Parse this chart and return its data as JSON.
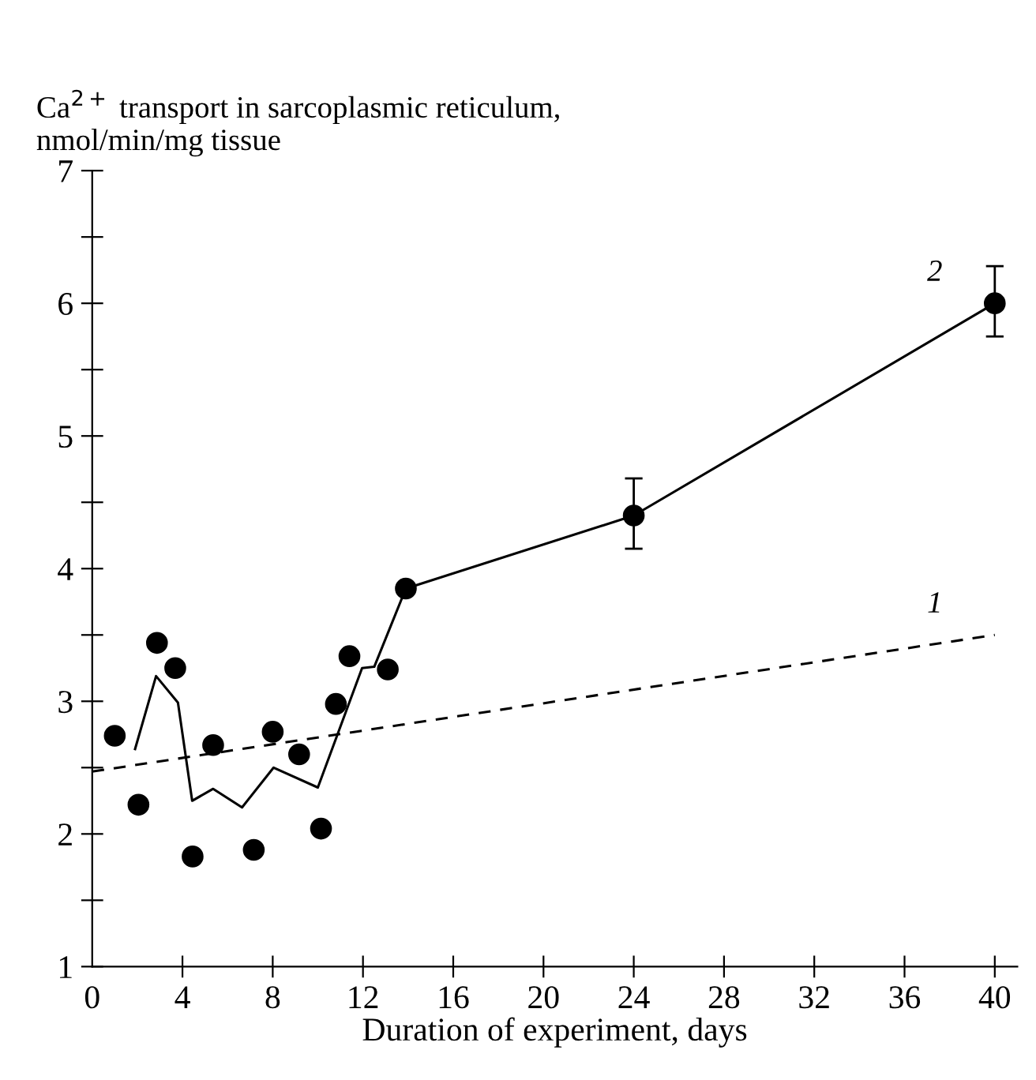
{
  "chart_data": {
    "type": "scatter",
    "ylabel": "Ca$^{2+}$ transport in sarcoplasmic reticulum,\nnmol/min/mg tissue",
    "xlabel": "Duration of experiment, days",
    "xlim": [
      0,
      41
    ],
    "xticks": [
      0,
      4,
      8,
      12,
      16,
      20,
      24,
      28,
      32,
      36,
      40
    ],
    "ylim": [
      1,
      7
    ],
    "yticks": [
      1,
      {
        "value": 1.5,
        "label": null
      },
      2,
      {
        "value": 2.5,
        "label": null
      },
      3,
      {
        "value": 3.5,
        "label": null
      },
      4,
      {
        "value": 4.5,
        "label": null
      },
      5,
      {
        "value": 5.5,
        "label": null
      },
      6,
      {
        "value": 6.5,
        "label": null
      },
      7
    ],
    "grid": false,
    "legend": false,
    "series": [
      {
        "type": "line",
        "name": "1",
        "color": "#000000",
        "line_style": "dashed",
        "marker": "none",
        "x": [
          0,
          40
        ],
        "values": [
          2.47,
          3.5
        ]
      },
      {
        "type": "line",
        "name": "2",
        "color": "#000000",
        "line_style": "solid",
        "marker": "none",
        "x": [
          1.9,
          2.83,
          3.8,
          4.43,
          5.36,
          6.64,
          8.04,
          10.0,
          11.96,
          12.5,
          13.9,
          24,
          40
        ],
        "values": [
          2.64,
          3.19,
          2.99,
          2.25,
          2.34,
          2.2,
          2.5,
          2.35,
          3.25,
          3.26,
          3.85,
          4.4,
          6.0
        ]
      },
      {
        "color": "#000000",
        "marker": "circle",
        "x": [
          1,
          2.05,
          2.87,
          3.68,
          4.45,
          5.36,
          7.16,
          8.0,
          9.17,
          10.14,
          10.8,
          11.4,
          13.1,
          13.9,
          24,
          40
        ],
        "values": [
          2.74,
          2.22,
          3.44,
          3.25,
          1.83,
          2.67,
          1.88,
          2.77,
          2.6,
          2.04,
          2.98,
          3.34,
          3.24,
          3.85,
          4.4,
          6.0
        ],
        "errors": [
          null,
          null,
          null,
          null,
          null,
          null,
          null,
          null,
          null,
          null,
          null,
          null,
          null,
          null,
          [
            4.15,
            4.68
          ],
          [
            5.75,
            6.28
          ]
        ]
      }
    ]
  }
}
